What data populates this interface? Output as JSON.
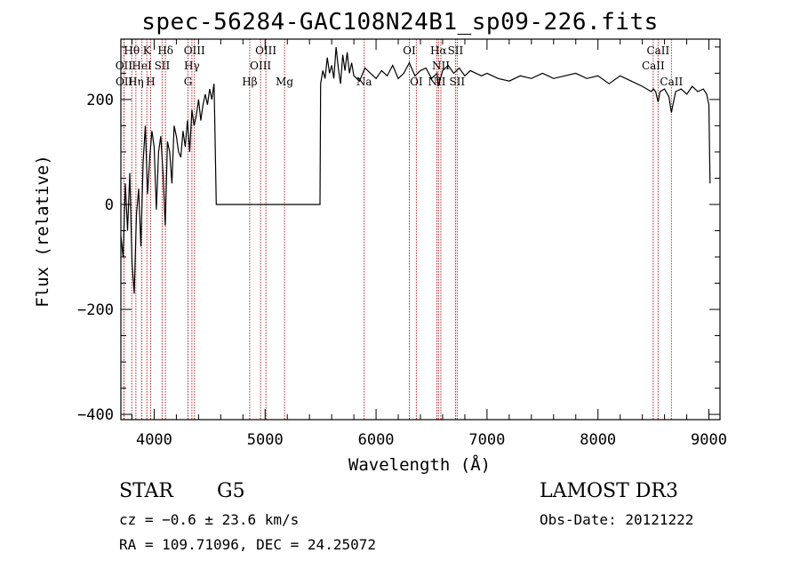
{
  "chart_data": {
    "type": "line",
    "title": "spec-56284-GAC108N24B1_sp09-226.fits",
    "xlabel": "Wavelength (Å)",
    "ylabel": "Flux (relative)",
    "xlim": [
      3700,
      9100
    ],
    "ylim": [
      -410,
      315
    ],
    "x_ticks": [
      4000,
      5000,
      6000,
      7000,
      8000,
      9000
    ],
    "x_tick_labels": [
      "4000",
      "5000",
      "6000",
      "7000",
      "8000",
      "9000"
    ],
    "y_ticks": [
      -400,
      -200,
      0,
      200
    ],
    "y_tick_labels": [
      "−400",
      "−200",
      "0",
      "200"
    ],
    "series": [
      {
        "x": [
          3700,
          3720,
          3740,
          3760,
          3780,
          3800,
          3820,
          3840,
          3860,
          3880,
          3900,
          3920,
          3940,
          3960,
          3980,
          4000,
          4020,
          4040,
          4060,
          4080,
          4100,
          4120,
          4140,
          4160,
          4180,
          4200,
          4220,
          4240,
          4260,
          4280,
          4300,
          4320,
          4340,
          4360,
          4380,
          4400,
          4420,
          4440,
          4460,
          4480,
          4500,
          4520,
          4540,
          4545,
          4560,
          5480,
          5495,
          5500,
          5520,
          5540,
          5560,
          5580,
          5600,
          5620,
          5640,
          5660,
          5680,
          5700,
          5720,
          5740,
          5760,
          5780,
          5800,
          5850,
          5900,
          5950,
          6000,
          6050,
          6100,
          6150,
          6200,
          6250,
          6300,
          6350,
          6400,
          6450,
          6500,
          6550,
          6560,
          6600,
          6650,
          6700,
          6750,
          6800,
          6850,
          6900,
          6950,
          7000,
          7100,
          7200,
          7300,
          7400,
          7500,
          7600,
          7700,
          7800,
          7900,
          8000,
          8100,
          8200,
          8300,
          8400,
          8480,
          8500,
          8520,
          8542,
          8560,
          8600,
          8640,
          8662,
          8700,
          8750,
          8800,
          8850,
          8900,
          8950,
          8980,
          9000,
          9010
        ],
        "y": [
          -60,
          -100,
          40,
          -50,
          60,
          -110,
          -170,
          -20,
          30,
          -80,
          80,
          150,
          20,
          90,
          140,
          110,
          -10,
          100,
          130,
          60,
          -40,
          120,
          100,
          40,
          150,
          130,
          100,
          90,
          140,
          110,
          160,
          100,
          180,
          150,
          170,
          200,
          160,
          190,
          210,
          190,
          220,
          200,
          230,
          170,
          0,
          0,
          0,
          230,
          255,
          240,
          280,
          250,
          265,
          240,
          300,
          260,
          230,
          285,
          255,
          290,
          250,
          270,
          245,
          235,
          260,
          250,
          240,
          255,
          245,
          265,
          240,
          250,
          270,
          245,
          255,
          260,
          240,
          250,
          225,
          255,
          265,
          250,
          260,
          245,
          255,
          250,
          245,
          250,
          240,
          235,
          245,
          240,
          250,
          240,
          245,
          250,
          240,
          245,
          230,
          245,
          235,
          225,
          215,
          220,
          215,
          195,
          215,
          220,
          205,
          175,
          215,
          220,
          210,
          225,
          215,
          220,
          210,
          190,
          40
        ]
      }
    ],
    "lines": [
      {
        "label": "Hθ",
        "x": 3798,
        "row": 0
      },
      {
        "label": "K",
        "x": 3934,
        "row": 0
      },
      {
        "label": "Hδ",
        "x": 4102,
        "row": 0
      },
      {
        "label": "OIII",
        "x": 4363,
        "row": 0
      },
      {
        "label": "OIII",
        "x": 5007,
        "row": 0
      },
      {
        "label": "OI",
        "x": 6300,
        "row": 0
      },
      {
        "label": "Hα",
        "x": 6563,
        "row": 0
      },
      {
        "label": "SII",
        "x": 6716,
        "row": 0
      },
      {
        "label": "CaII",
        "x": 8542,
        "row": 0
      },
      {
        "label": "OII",
        "x": 3727,
        "row": 1
      },
      {
        "label": "HeI",
        "x": 3889,
        "row": 1
      },
      {
        "label": "SII",
        "x": 4072,
        "row": 1
      },
      {
        "label": "Hγ",
        "x": 4340,
        "row": 1
      },
      {
        "label": "OIII",
        "x": 4959,
        "row": 1
      },
      {
        "label": "NII",
        "x": 6584,
        "row": 1
      },
      {
        "label": "CaII",
        "x": 8498,
        "row": 1
      },
      {
        "label": "OII",
        "x": 3729,
        "row": 2
      },
      {
        "label": "Hη",
        "x": 3835,
        "row": 2
      },
      {
        "label": "H",
        "x": 3968,
        "row": 2
      },
      {
        "label": "G",
        "x": 4305,
        "row": 2
      },
      {
        "label": "Hβ",
        "x": 4861,
        "row": 2
      },
      {
        "label": "Mg",
        "x": 5175,
        "row": 2
      },
      {
        "label": "Na",
        "x": 5893,
        "row": 2
      },
      {
        "label": "OI",
        "x": 6363,
        "row": 2
      },
      {
        "label": "NII",
        "x": 6548,
        "row": 2
      },
      {
        "label": "SII",
        "x": 6731,
        "row": 2
      },
      {
        "label": "CaII",
        "x": 8662,
        "row": 2
      }
    ],
    "colors": {
      "data": "#000000",
      "lines": "#b22222",
      "axis": "#000000"
    }
  },
  "info": {
    "class_label": "STAR",
    "subclass_label": "G5",
    "cz_text": "cz = −0.6 ± 23.6 km/s",
    "coords_text": "RA = 109.71096, DEC =  24.25072",
    "survey_text": "LAMOST DR3",
    "obs_date_text": "Obs-Date: 20121222"
  }
}
